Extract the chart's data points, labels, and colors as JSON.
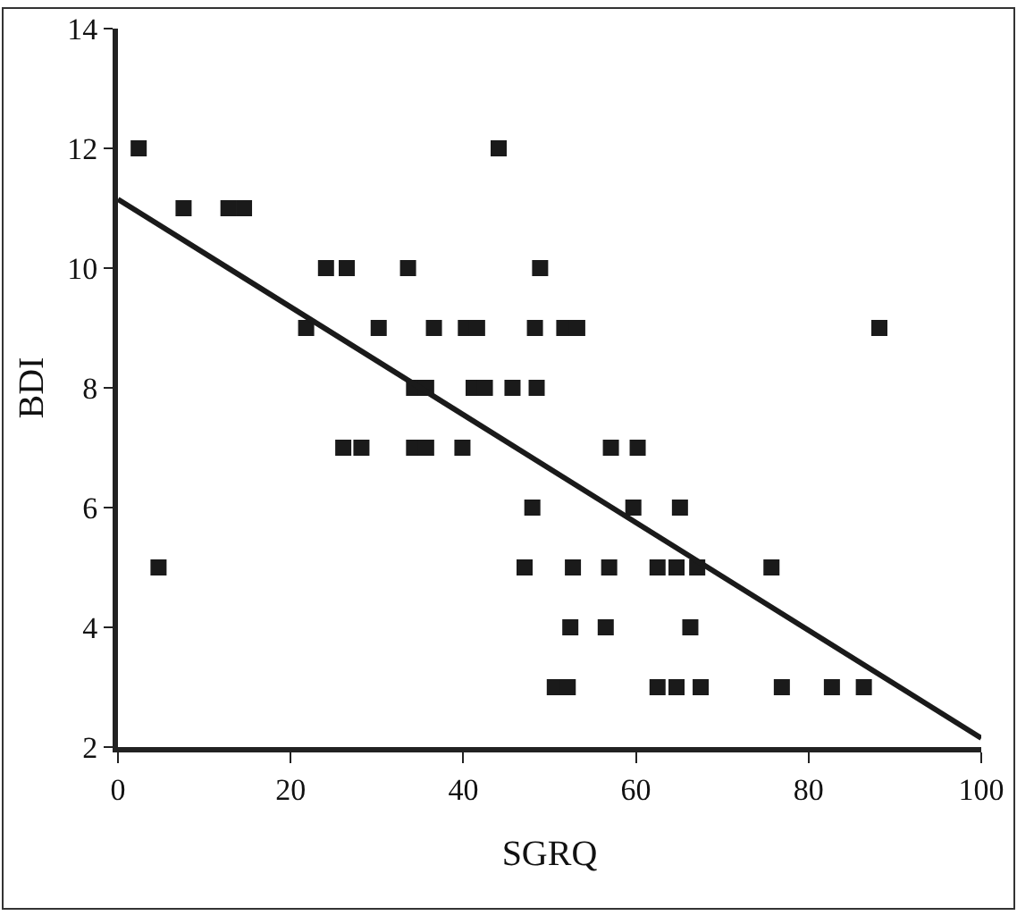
{
  "chart_data": {
    "type": "scatter",
    "xlabel": "SGRQ",
    "ylabel": "BDI",
    "xlim": [
      0,
      100
    ],
    "xticks": [
      0,
      20,
      40,
      60,
      80,
      100
    ],
    "ylim": [
      2,
      14
    ],
    "yticks": [
      2,
      4,
      6,
      8,
      10,
      12,
      14
    ],
    "grid": false,
    "series": [
      {
        "color": "#1a1a1a",
        "marker": "square",
        "x": [
          2.4,
          44.1,
          7.6,
          12.8,
          14.6,
          24.1,
          26.5,
          33.6,
          48.9,
          21.8,
          30.2,
          36.6,
          40.3,
          41.6,
          48.3,
          51.7,
          53.2,
          88.2,
          34.3,
          35.7,
          41.2,
          42.5,
          45.7,
          48.5,
          26.1,
          28.2,
          34.3,
          35.7,
          39.9,
          57.1,
          60.2,
          48.0,
          59.7,
          65.1,
          4.7,
          47.1,
          52.7,
          56.9,
          62.5,
          64.7,
          67.1,
          75.7,
          52.4,
          56.5,
          66.3,
          50.6,
          52.1,
          62.5,
          64.7,
          67.5,
          76.9,
          82.7,
          86.4
        ],
        "values": [
          12,
          12,
          11,
          11,
          11,
          10,
          10,
          10,
          10,
          9,
          9,
          9,
          9,
          9,
          9,
          9,
          9,
          9,
          8,
          8,
          8,
          8,
          8,
          8,
          7,
          7,
          7,
          7,
          7,
          7,
          7,
          6,
          6,
          6,
          5,
          5,
          5,
          5,
          5,
          5,
          5,
          5,
          4,
          4,
          4,
          3,
          3,
          3,
          3,
          3,
          3,
          3,
          3
        ]
      },
      {
        "type": "line",
        "color": "#1a1a1a",
        "line_style": "solid",
        "x": [
          0,
          100
        ],
        "values": [
          11.15,
          2.15
        ]
      }
    ]
  }
}
